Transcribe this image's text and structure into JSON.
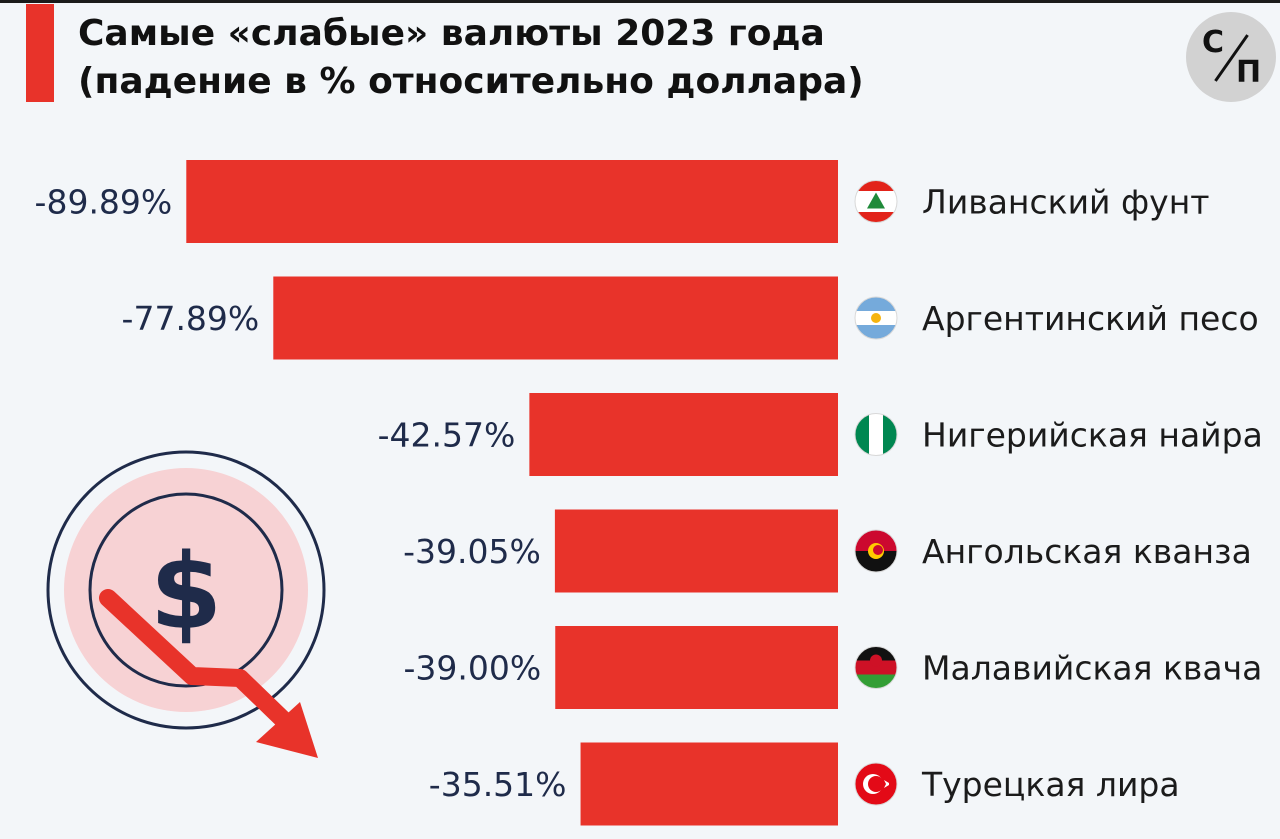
{
  "title": {
    "line1": "Самые «слабые» валюты 2023 года",
    "line2": "(падение в % относительно доллара)"
  },
  "logo": {
    "top": "С",
    "bottom": "П"
  },
  "colors": {
    "accent": "#e8332a",
    "background": "#f3f6f9",
    "value_text": "#1f2b4a"
  },
  "illustration": {
    "symbol": "$",
    "icons": [
      "dollar-coin-icon",
      "down-trend-arrow-icon"
    ]
  },
  "chart_data": {
    "type": "bar",
    "orientation": "horizontal",
    "categories": [
      "Ливанский фунт",
      "Аргентинский песо",
      "Нигерийская найра",
      "Ангольская кванза",
      "Малавийская квача",
      "Турецкая лира"
    ],
    "values": [
      -89.89,
      -77.89,
      -42.57,
      -39.05,
      -39.0,
      -35.51
    ],
    "value_labels": [
      "-89.89%",
      "-77.89%",
      "-42.57%",
      "-39.05%",
      "-39.00%",
      "-35.51%"
    ],
    "flags": [
      "lebanon-flag-icon",
      "argentina-flag-icon",
      "nigeria-flag-icon",
      "angola-flag-icon",
      "malawi-flag-icon",
      "turkey-flag-icon"
    ],
    "bar_color": "#e8332a",
    "xlim": [
      -100,
      0
    ],
    "grid": false,
    "legend": false
  }
}
